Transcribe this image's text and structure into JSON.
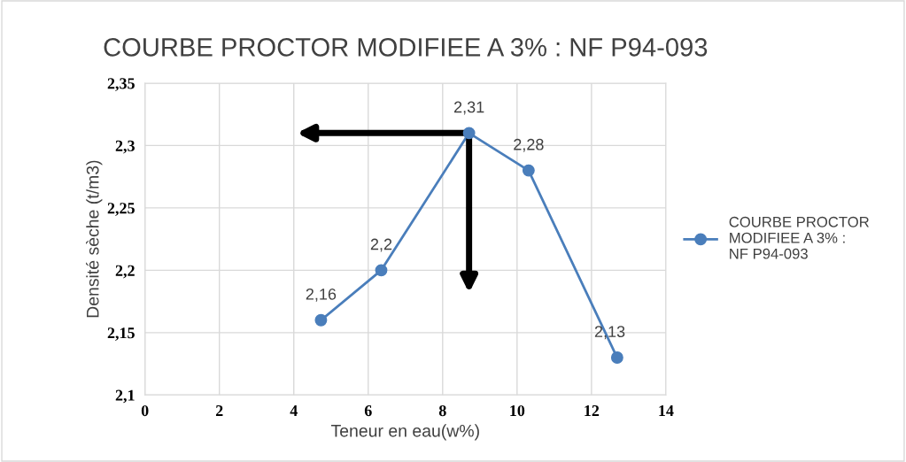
{
  "chart_data": {
    "type": "line",
    "title": "COURBE PROCTOR MODIFIEE A 3% : NF P94-093",
    "xlabel": "Teneur en eau(w%)",
    "ylabel": "Densité sèche (t/m3)",
    "x": [
      4.73,
      6.35,
      8.71,
      10.31,
      12.69
    ],
    "series": [
      {
        "name": "COURBE PROCTOR MODIFIEE A 3% : NF P94-093",
        "color": "#4a7ebb",
        "values": [
          2.16,
          2.2,
          2.31,
          2.28,
          2.13
        ]
      }
    ],
    "value_labels": [
      "2,16",
      "2,2",
      "2,31",
      "2,28",
      "2,13"
    ],
    "xlim": [
      0,
      14
    ],
    "xticks": [
      0,
      2,
      4,
      6,
      8,
      10,
      12,
      14
    ],
    "ylim": [
      2.1,
      2.35
    ],
    "yticks": [
      {
        "value": 2.1,
        "label": "2,1"
      },
      {
        "value": 2.15,
        "label": "2,15"
      },
      {
        "value": 2.2,
        "label": "2,2"
      },
      {
        "value": 2.25,
        "label": "2,25"
      },
      {
        "value": 2.3,
        "label": "2,3"
      },
      {
        "value": 2.35,
        "label": "2,35"
      }
    ],
    "grid": true,
    "legend": "right",
    "marker": "circle",
    "line_style": "solid"
  }
}
